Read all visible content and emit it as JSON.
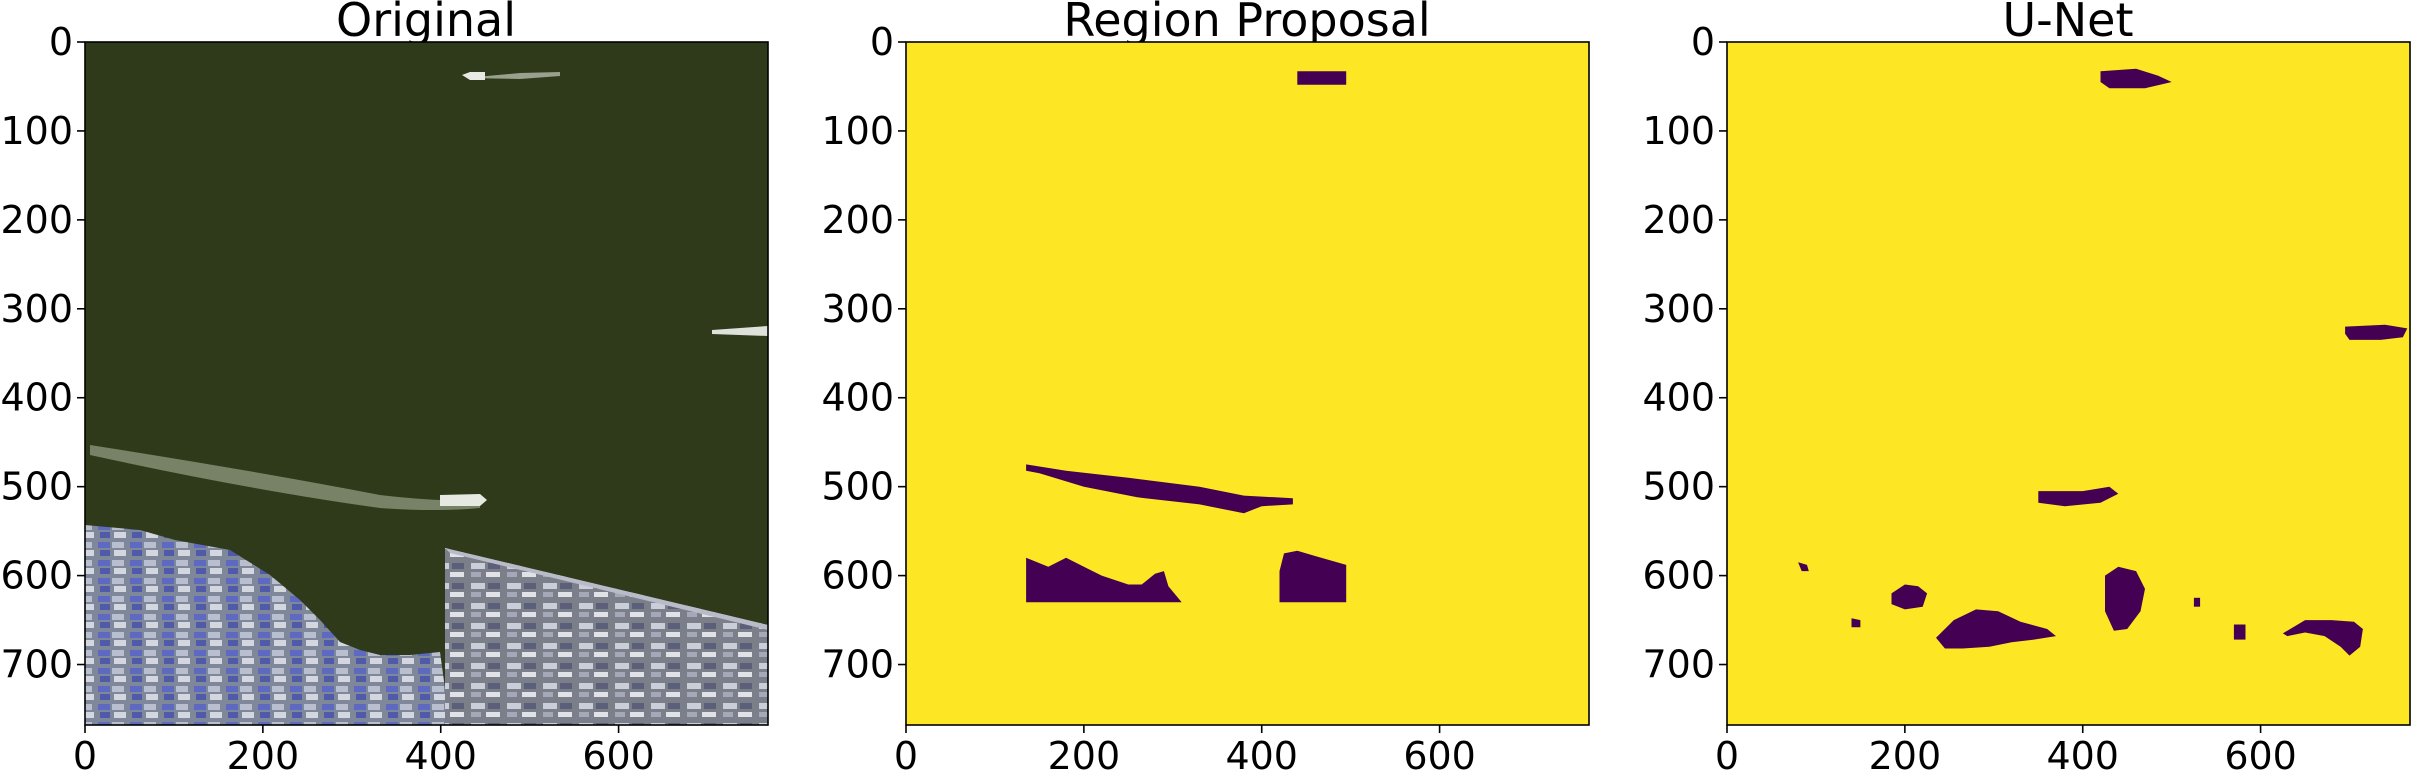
{
  "chart_data": [
    {
      "type": "image",
      "title": "Original",
      "xlim": [
        0,
        768
      ],
      "ylim": [
        768,
        0
      ],
      "xticks": [
        "0",
        "200",
        "400",
        "600"
      ],
      "yticks": [
        "0",
        "100",
        "200",
        "300",
        "400",
        "500",
        "600",
        "700"
      ],
      "content": "satellite image of harbor water with boats and container port",
      "colors": {
        "water": "#2f3a1b",
        "quay": "#8c93a8",
        "containers": "#5f6bc4",
        "wake": "#d9dfd4"
      }
    },
    {
      "type": "heatmap",
      "title": "Region Proposal",
      "xlim": [
        0,
        768
      ],
      "ylim": [
        768,
        0
      ],
      "xticks": [
        "0",
        "200",
        "400",
        "600"
      ],
      "yticks": [
        "0",
        "100",
        "200",
        "300",
        "400",
        "500",
        "600",
        "700"
      ],
      "colormap": {
        "background": "#fde725",
        "detected": "#440154"
      },
      "regions": [
        {
          "points": [
            [
              440,
              33
            ],
            [
              495,
              33
            ],
            [
              495,
              48
            ],
            [
              440,
              48
            ]
          ]
        },
        {
          "points": [
            [
              135,
              475
            ],
            [
              180,
              482
            ],
            [
              250,
              490
            ],
            [
              330,
              500
            ],
            [
              380,
              510
            ],
            [
              415,
              512
            ],
            [
              435,
              513
            ],
            [
              435,
              520
            ],
            [
              400,
              522
            ],
            [
              380,
              530
            ],
            [
              330,
              520
            ],
            [
              260,
              512
            ],
            [
              200,
              500
            ],
            [
              150,
              485
            ],
            [
              135,
              482
            ]
          ]
        },
        {
          "points": [
            [
              135,
              580
            ],
            [
              160,
              590
            ],
            [
              180,
              580
            ],
            [
              200,
              590
            ],
            [
              220,
              600
            ],
            [
              250,
              610
            ],
            [
              265,
              610
            ],
            [
              280,
              598
            ],
            [
              290,
              595
            ],
            [
              295,
              612
            ],
            [
              310,
              630
            ],
            [
              135,
              630
            ]
          ]
        },
        {
          "points": [
            [
              420,
              595
            ],
            [
              425,
              575
            ],
            [
              440,
              572
            ],
            [
              460,
              578
            ],
            [
              495,
              588
            ],
            [
              495,
              630
            ],
            [
              420,
              630
            ]
          ]
        }
      ]
    },
    {
      "type": "heatmap",
      "title": "U-Net",
      "xlim": [
        0,
        768
      ],
      "ylim": [
        768,
        0
      ],
      "xticks": [
        "0",
        "200",
        "400",
        "600"
      ],
      "yticks": [
        "0",
        "100",
        "200",
        "300",
        "400",
        "500",
        "600",
        "700"
      ],
      "colormap": {
        "background": "#fde725",
        "detected": "#440154"
      },
      "regions": [
        {
          "points": [
            [
              420,
              33
            ],
            [
              460,
              30
            ],
            [
              485,
              38
            ],
            [
              500,
              45
            ],
            [
              470,
              52
            ],
            [
              430,
              52
            ],
            [
              420,
              45
            ]
          ]
        },
        {
          "points": [
            [
              695,
              320
            ],
            [
              740,
              318
            ],
            [
              765,
              322
            ],
            [
              760,
              332
            ],
            [
              735,
              335
            ],
            [
              700,
              335
            ],
            [
              695,
              328
            ]
          ]
        },
        {
          "points": [
            [
              350,
              505
            ],
            [
              400,
              505
            ],
            [
              430,
              500
            ],
            [
              440,
              508
            ],
            [
              420,
              518
            ],
            [
              380,
              522
            ],
            [
              350,
              518
            ]
          ]
        },
        {
          "points": [
            [
              80,
              585
            ],
            [
              90,
              588
            ],
            [
              92,
              595
            ],
            [
              84,
              595
            ]
          ]
        },
        {
          "points": [
            [
              140,
              648
            ],
            [
              150,
              650
            ],
            [
              150,
              658
            ],
            [
              140,
              658
            ]
          ]
        },
        {
          "points": [
            [
              185,
              620
            ],
            [
              200,
              610
            ],
            [
              215,
              612
            ],
            [
              225,
              620
            ],
            [
              220,
              635
            ],
            [
              200,
              638
            ],
            [
              185,
              632
            ]
          ]
        },
        {
          "points": [
            [
              235,
              670
            ],
            [
              255,
              650
            ],
            [
              280,
              638
            ],
            [
              305,
              640
            ],
            [
              330,
              652
            ],
            [
              360,
              660
            ],
            [
              370,
              668
            ],
            [
              345,
              672
            ],
            [
              320,
              675
            ],
            [
              295,
              680
            ],
            [
              265,
              682
            ],
            [
              245,
              682
            ]
          ]
        },
        {
          "points": [
            [
              425,
              600
            ],
            [
              440,
              590
            ],
            [
              460,
              595
            ],
            [
              470,
              615
            ],
            [
              465,
              640
            ],
            [
              450,
              660
            ],
            [
              435,
              662
            ],
            [
              425,
              640
            ]
          ]
        },
        {
          "points": [
            [
              525,
              625
            ],
            [
              532,
              625
            ],
            [
              532,
              635
            ],
            [
              525,
              635
            ]
          ]
        },
        {
          "points": [
            [
              570,
              655
            ],
            [
              583,
              655
            ],
            [
              583,
              672
            ],
            [
              570,
              672
            ]
          ]
        },
        {
          "points": [
            [
              625,
              665
            ],
            [
              650,
              650
            ],
            [
              680,
              650
            ],
            [
              705,
              652
            ],
            [
              715,
              660
            ],
            [
              712,
              680
            ],
            [
              700,
              690
            ],
            [
              690,
              680
            ],
            [
              672,
              668
            ],
            [
              650,
              664
            ],
            [
              630,
              668
            ]
          ]
        }
      ]
    }
  ]
}
